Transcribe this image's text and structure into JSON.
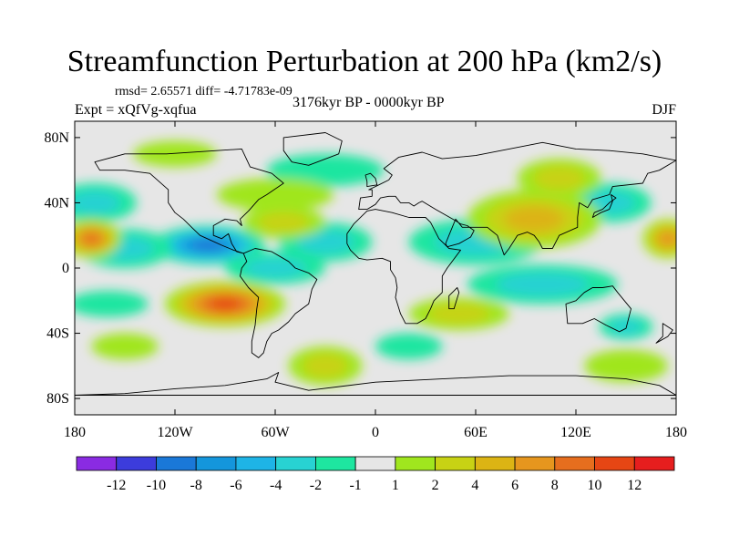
{
  "title": "Streamfunction Perturbation at 200 hPa (km2/s)",
  "stats_line": "rmsd= 2.65571 diff= -4.71783e-09",
  "experiment_label": "Expt = xQfVg-xqfua",
  "period_label": "3176kyr BP - 0000kyr BP",
  "season_label": "DJF",
  "colors": {
    "no_data_band": "#e6e6e6",
    "coast": "#000000"
  },
  "chart_data": {
    "type": "heatmap",
    "title": "Streamfunction Perturbation at 200 hPa (km2/s)",
    "x_axis": {
      "range": [
        -180,
        180
      ],
      "ticks": [
        -180,
        -120,
        -60,
        0,
        60,
        120,
        180
      ],
      "tick_labels": [
        "180",
        "120W",
        "60W",
        "0",
        "60E",
        "120E",
        "180"
      ]
    },
    "y_axis": {
      "range": [
        -90,
        90
      ],
      "ticks": [
        80,
        40,
        0,
        -40,
        -80
      ],
      "tick_labels": [
        "80N",
        "40N",
        "0",
        "40S",
        "80S"
      ]
    },
    "colorbar": {
      "boundaries": [
        "-12",
        "-10",
        "-8",
        "-6",
        "-4",
        "-2",
        "-1",
        "1",
        "2",
        "4",
        "6",
        "8",
        "10",
        "12"
      ],
      "colors": [
        "#8a2be2",
        "#3c3cdc",
        "#1a78d8",
        "#1496dc",
        "#1eb4e6",
        "#28d2d2",
        "#1ee6a0",
        "#e6e6e6",
        "#a0e61e",
        "#c8d214",
        "#dcb414",
        "#e6961e",
        "#e66e1e",
        "#e64614",
        "#e61e1e"
      ]
    },
    "anomalies": [
      {
        "lon": -100,
        "lat": 14,
        "value": -9,
        "rx": 34,
        "ry": 12
      },
      {
        "lon": -150,
        "lat": 12,
        "value": -4,
        "rx": 28,
        "ry": 12
      },
      {
        "lon": -60,
        "lat": 0,
        "value": -3,
        "rx": 30,
        "ry": 10
      },
      {
        "lon": -30,
        "lat": 16,
        "value": -3,
        "rx": 28,
        "ry": 12
      },
      {
        "lon": 60,
        "lat": 16,
        "value": -4,
        "rx": 40,
        "ry": 14
      },
      {
        "lon": 100,
        "lat": -10,
        "value": -4,
        "rx": 45,
        "ry": 12
      },
      {
        "lon": 140,
        "lat": 40,
        "value": -4,
        "rx": 25,
        "ry": 12
      },
      {
        "lon": -168,
        "lat": 40,
        "value": -4,
        "rx": 25,
        "ry": 12
      },
      {
        "lon": -30,
        "lat": 60,
        "value": -2,
        "rx": 35,
        "ry": 10
      },
      {
        "lon": 20,
        "lat": -48,
        "value": -2,
        "rx": 20,
        "ry": 8
      },
      {
        "lon": -160,
        "lat": -22,
        "value": -2,
        "rx": 24,
        "ry": 8
      },
      {
        "lon": 150,
        "lat": -36,
        "value": -3,
        "rx": 16,
        "ry": 8
      },
      {
        "lon": -90,
        "lat": -22,
        "value": 11,
        "rx": 36,
        "ry": 14
      },
      {
        "lon": -170,
        "lat": 18,
        "value": 9,
        "rx": 18,
        "ry": 12
      },
      {
        "lon": 175,
        "lat": 18,
        "value": 7,
        "rx": 15,
        "ry": 12
      },
      {
        "lon": 95,
        "lat": 30,
        "value": 6,
        "rx": 40,
        "ry": 18
      },
      {
        "lon": 110,
        "lat": 55,
        "value": 4,
        "rx": 25,
        "ry": 12
      },
      {
        "lon": -55,
        "lat": 28,
        "value": 3,
        "rx": 25,
        "ry": 10
      },
      {
        "lon": 50,
        "lat": -28,
        "value": 3,
        "rx": 30,
        "ry": 10
      },
      {
        "lon": -30,
        "lat": -60,
        "value": 3,
        "rx": 22,
        "ry": 12
      },
      {
        "lon": -60,
        "lat": 45,
        "value": 2,
        "rx": 35,
        "ry": 10
      },
      {
        "lon": 150,
        "lat": -60,
        "value": 2,
        "rx": 25,
        "ry": 10
      },
      {
        "lon": -150,
        "lat": -48,
        "value": 2,
        "rx": 20,
        "ry": 8
      },
      {
        "lon": -120,
        "lat": 70,
        "value": 2,
        "rx": 25,
        "ry": 8
      }
    ],
    "land_outlines": [
      {
        "name": "North America",
        "points": [
          [
            -168,
            65
          ],
          [
            -150,
            70
          ],
          [
            -125,
            70
          ],
          [
            -95,
            72
          ],
          [
            -80,
            73
          ],
          [
            -75,
            62
          ],
          [
            -62,
            58
          ],
          [
            -55,
            52
          ],
          [
            -65,
            45
          ],
          [
            -70,
            42
          ],
          [
            -76,
            35
          ],
          [
            -81,
            30
          ],
          [
            -80,
            26
          ],
          [
            -83,
            29
          ],
          [
            -90,
            30
          ],
          [
            -97,
            26
          ],
          [
            -97,
            20
          ],
          [
            -92,
            18
          ],
          [
            -88,
            21
          ],
          [
            -86,
            15
          ],
          [
            -83,
            10
          ],
          [
            -79,
            9
          ],
          [
            -85,
            11
          ],
          [
            -92,
            14
          ],
          [
            -105,
            20
          ],
          [
            -110,
            25
          ],
          [
            -115,
            30
          ],
          [
            -120,
            34
          ],
          [
            -124,
            40
          ],
          [
            -124,
            48
          ],
          [
            -135,
            58
          ],
          [
            -150,
            60
          ],
          [
            -165,
            60
          ]
        ]
      },
      {
        "name": "Greenland",
        "points": [
          [
            -55,
            80
          ],
          [
            -30,
            83
          ],
          [
            -20,
            78
          ],
          [
            -22,
            70
          ],
          [
            -40,
            63
          ],
          [
            -50,
            65
          ],
          [
            -55,
            72
          ]
        ]
      },
      {
        "name": "South America",
        "points": [
          [
            -79,
            9
          ],
          [
            -72,
            12
          ],
          [
            -62,
            10
          ],
          [
            -52,
            4
          ],
          [
            -48,
            0
          ],
          [
            -40,
            -3
          ],
          [
            -35,
            -7
          ],
          [
            -38,
            -13
          ],
          [
            -40,
            -22
          ],
          [
            -48,
            -28
          ],
          [
            -52,
            -33
          ],
          [
            -58,
            -38
          ],
          [
            -62,
            -40
          ],
          [
            -65,
            -45
          ],
          [
            -67,
            -52
          ],
          [
            -70,
            -55
          ],
          [
            -74,
            -52
          ],
          [
            -74,
            -45
          ],
          [
            -72,
            -35
          ],
          [
            -71,
            -25
          ],
          [
            -70,
            -18
          ],
          [
            -76,
            -12
          ],
          [
            -81,
            -5
          ],
          [
            -80,
            0
          ],
          [
            -77,
            4
          ]
        ]
      },
      {
        "name": "Eurasia",
        "points": [
          [
            -10,
            36
          ],
          [
            -9,
            43
          ],
          [
            -2,
            44
          ],
          [
            -2,
            48
          ],
          [
            -4,
            48
          ],
          [
            2,
            51
          ],
          [
            8,
            54
          ],
          [
            10,
            57
          ],
          [
            5,
            61
          ],
          [
            14,
            68
          ],
          [
            28,
            71
          ],
          [
            40,
            67
          ],
          [
            60,
            69
          ],
          [
            80,
            73
          ],
          [
            100,
            77
          ],
          [
            120,
            73
          ],
          [
            140,
            72
          ],
          [
            160,
            70
          ],
          [
            180,
            66
          ],
          [
            170,
            60
          ],
          [
            163,
            58
          ],
          [
            160,
            52
          ],
          [
            142,
            50
          ],
          [
            140,
            45
          ],
          [
            130,
            42
          ],
          [
            127,
            37
          ],
          [
            122,
            40
          ],
          [
            121,
            31
          ],
          [
            121,
            25
          ],
          [
            110,
            20
          ],
          [
            106,
            12
          ],
          [
            100,
            12
          ],
          [
            98,
            16
          ],
          [
            95,
            20
          ],
          [
            91,
            22
          ],
          [
            85,
            20
          ],
          [
            80,
            12
          ],
          [
            77,
            8
          ],
          [
            73,
            20
          ],
          [
            67,
            25
          ],
          [
            58,
            25
          ],
          [
            52,
            25
          ],
          [
            48,
            30
          ],
          [
            42,
            15
          ],
          [
            43,
            13
          ],
          [
            50,
            15
          ],
          [
            57,
            19
          ],
          [
            59,
            23
          ],
          [
            55,
            26
          ],
          [
            51,
            27
          ],
          [
            48,
            29
          ],
          [
            36,
            36
          ],
          [
            28,
            41
          ],
          [
            26,
            40
          ],
          [
            23,
            38
          ],
          [
            20,
            40
          ],
          [
            15,
            40
          ],
          [
            12,
            44
          ],
          [
            8,
            44
          ],
          [
            3,
            43
          ],
          [
            0,
            39
          ],
          [
            -5,
            36
          ]
        ]
      },
      {
        "name": "Great Britain",
        "points": [
          [
            -5,
            50
          ],
          [
            1,
            51
          ],
          [
            0,
            55
          ],
          [
            -3,
            58
          ],
          [
            -6,
            57
          ],
          [
            -5,
            53
          ]
        ]
      },
      {
        "name": "Africa",
        "points": [
          [
            -17,
            21
          ],
          [
            -17,
            15
          ],
          [
            -15,
            11
          ],
          [
            -10,
            6
          ],
          [
            -5,
            5
          ],
          [
            4,
            6
          ],
          [
            9,
            4
          ],
          [
            9,
            -1
          ],
          [
            12,
            -6
          ],
          [
            13,
            -12
          ],
          [
            12,
            -18
          ],
          [
            15,
            -28
          ],
          [
            18,
            -34
          ],
          [
            25,
            -34
          ],
          [
            30,
            -31
          ],
          [
            33,
            -25
          ],
          [
            35,
            -20
          ],
          [
            40,
            -15
          ],
          [
            40,
            -5
          ],
          [
            43,
            0
          ],
          [
            51,
            11
          ],
          [
            44,
            12
          ],
          [
            38,
            18
          ],
          [
            33,
            28
          ],
          [
            30,
            31
          ],
          [
            20,
            31
          ],
          [
            10,
            34
          ],
          [
            0,
            36
          ],
          [
            -5,
            35
          ],
          [
            -10,
            30
          ],
          [
            -13,
            27
          ]
        ]
      },
      {
        "name": "Madagascar",
        "points": [
          [
            44,
            -25
          ],
          [
            47,
            -25
          ],
          [
            50,
            -15
          ],
          [
            49,
            -12
          ],
          [
            44,
            -17
          ]
        ]
      },
      {
        "name": "Australia",
        "points": [
          [
            114,
            -22
          ],
          [
            115,
            -34
          ],
          [
            124,
            -34
          ],
          [
            131,
            -31
          ],
          [
            138,
            -35
          ],
          [
            146,
            -39
          ],
          [
            150,
            -37
          ],
          [
            153,
            -25
          ],
          [
            145,
            -15
          ],
          [
            142,
            -11
          ],
          [
            136,
            -12
          ],
          [
            130,
            -12
          ],
          [
            125,
            -15
          ],
          [
            120,
            -20
          ]
        ]
      },
      {
        "name": "New Zealand",
        "points": [
          [
            172,
            -34
          ],
          [
            178,
            -38
          ],
          [
            175,
            -42
          ],
          [
            168,
            -46
          ],
          [
            172,
            -42
          ]
        ]
      },
      {
        "name": "Japan",
        "points": [
          [
            130,
            31
          ],
          [
            135,
            34
          ],
          [
            140,
            36
          ],
          [
            142,
            41
          ],
          [
            141,
            45
          ],
          [
            144,
            43
          ],
          [
            140,
            40
          ],
          [
            136,
            36
          ],
          [
            131,
            34
          ]
        ]
      },
      {
        "name": "Antarctica",
        "points": [
          [
            -180,
            -78
          ],
          [
            -150,
            -77
          ],
          [
            -120,
            -74
          ],
          [
            -90,
            -72
          ],
          [
            -65,
            -68
          ],
          [
            -58,
            -64
          ],
          [
            -60,
            -70
          ],
          [
            -40,
            -75
          ],
          [
            0,
            -70
          ],
          [
            40,
            -68
          ],
          [
            80,
            -66
          ],
          [
            120,
            -66
          ],
          [
            150,
            -68
          ],
          [
            170,
            -72
          ],
          [
            180,
            -78
          ]
        ]
      }
    ]
  }
}
